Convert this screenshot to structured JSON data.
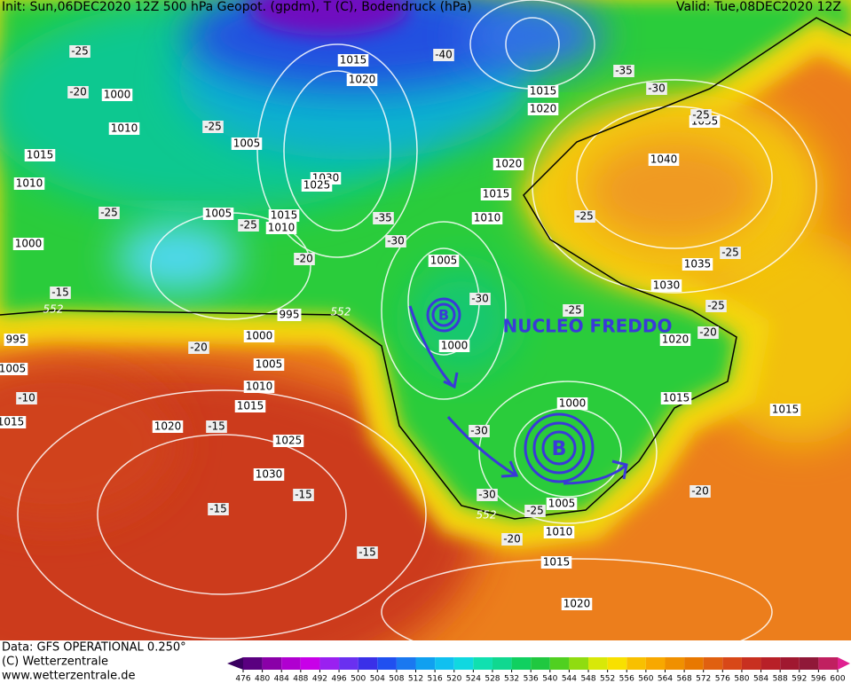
{
  "header": {
    "left": "Init: Sun,06DEC2020 12Z 500 hPa Geopot. (gpdm), T (C), Bodendruck (hPa)",
    "right": "Valid: Tue,08DEC2020 12Z"
  },
  "footer": {
    "line1": "Data: GFS OPERATIONAL 0.250°",
    "line2": "(C) Wetterzentrale",
    "line3": "www.wetterzentrale.de"
  },
  "annotations": {
    "low1": "B",
    "low2": "B",
    "text": "NUCLEO FREDDO"
  },
  "isobar_labels": [
    "1015",
    "1020",
    "1000",
    "1010",
    "1005",
    "1015",
    "1010",
    "1030",
    "1025",
    "1020",
    "1015",
    "1010",
    "1005",
    "1015",
    "1010",
    "1000",
    "1005",
    "995",
    "995",
    "1000",
    "1005",
    "1010",
    "1015",
    "1020",
    "1025",
    "1030",
    "1000",
    "1015",
    "1020",
    "1040",
    "1035",
    "1035",
    "1030",
    "1020",
    "1015",
    "1015",
    "1000",
    "1005",
    "1010",
    "1015",
    "1020",
    "1005",
    "1015"
  ],
  "temperature_labels": [
    "-25",
    "-20",
    "-40",
    "-35",
    "-30",
    "-25",
    "-25",
    "-25",
    "-25",
    "-35",
    "-30",
    "-20",
    "-15",
    "-30",
    "-25",
    "-25",
    "-20",
    "-10",
    "-15",
    "-30",
    "-15",
    "-15",
    "-30",
    "-25",
    "-20",
    "-15",
    "-20",
    "-25",
    "-25",
    "-20"
  ],
  "geopotential_labels": [
    "552",
    "552",
    "552"
  ],
  "colorbar": {
    "ticks": [
      476,
      480,
      484,
      488,
      492,
      496,
      500,
      504,
      508,
      512,
      516,
      520,
      524,
      528,
      532,
      536,
      540,
      544,
      548,
      552,
      556,
      560,
      564,
      568,
      572,
      576,
      580,
      584,
      588,
      592,
      596,
      600
    ]
  }
}
